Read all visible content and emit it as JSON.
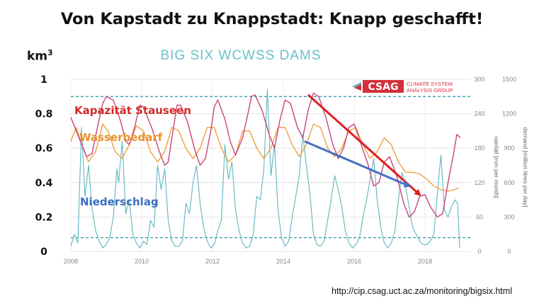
{
  "slide": {
    "title": "Von Kapstadt zu Knappstadt: Knapp geschafft!",
    "unit_base": "km",
    "unit_exp": "3",
    "source": "http://cip.csag.uct.ac.za/monitoring/bigsix.html"
  },
  "logo": {
    "name": "CSAG",
    "line1": "CLIMATE SYSTEM",
    "line2": "ANALYSIS GROUP",
    "color": "#d42f3a"
  },
  "chart_data": {
    "type": "line",
    "title": "BIG SIX WCWSS DAMS",
    "x_ticks": [
      "2008",
      "2010",
      "2012",
      "2014",
      "2016",
      "2018"
    ],
    "xlim": [
      2008,
      2019.3
    ],
    "y_left": {
      "label": "km³",
      "ticks": [
        "0",
        "0.2",
        "0.4",
        "0.6",
        "0.8",
        "1"
      ],
      "lim": [
        0,
        1
      ]
    },
    "y_rain": {
      "label": "rainfall [mm per month]",
      "ticks": [
        "0",
        "60",
        "120",
        "180",
        "240",
        "300"
      ],
      "lim": [
        0,
        300
      ]
    },
    "y_demand": {
      "label": "demand [million litres per day]",
      "ticks": [
        "0",
        "300",
        "600",
        "900",
        "1200",
        "1500"
      ],
      "lim": [
        0,
        1500
      ]
    },
    "reference_lines": [
      0.9,
      0.08
    ],
    "annotations": [
      {
        "text": "Kapazität Stauseen",
        "color": "#d42a2a"
      },
      {
        "text": "Wasserbedarf",
        "color": "#e8912e"
      },
      {
        "text": "Niederschlag",
        "color": "#3b6fc2"
      }
    ],
    "trend_arrows": [
      {
        "series": "storage",
        "from": [
          2014.7,
          0.91
        ],
        "to": [
          2017.85,
          0.33
        ],
        "color": "#dd1f1f"
      },
      {
        "series": "rainfall",
        "from": [
          2014.6,
          0.64
        ],
        "to": [
          2017.55,
          0.38
        ],
        "color": "#4670c8"
      }
    ],
    "series": [
      {
        "key": "storage",
        "color": "#c8457a",
        "points": [
          [
            2008.0,
            0.78
          ],
          [
            2008.25,
            0.65
          ],
          [
            2008.45,
            0.55
          ],
          [
            2008.6,
            0.57
          ],
          [
            2008.75,
            0.72
          ],
          [
            2008.9,
            0.86
          ],
          [
            2009.0,
            0.9
          ],
          [
            2009.2,
            0.88
          ],
          [
            2009.4,
            0.76
          ],
          [
            2009.55,
            0.64
          ],
          [
            2009.65,
            0.62
          ],
          [
            2009.8,
            0.72
          ],
          [
            2009.95,
            0.85
          ],
          [
            2010.05,
            0.84
          ],
          [
            2010.3,
            0.71
          ],
          [
            2010.5,
            0.58
          ],
          [
            2010.65,
            0.5
          ],
          [
            2010.75,
            0.52
          ],
          [
            2010.9,
            0.72
          ],
          [
            2011.0,
            0.85
          ],
          [
            2011.1,
            0.85
          ],
          [
            2011.3,
            0.75
          ],
          [
            2011.5,
            0.59
          ],
          [
            2011.65,
            0.5
          ],
          [
            2011.8,
            0.54
          ],
          [
            2011.95,
            0.7
          ],
          [
            2012.05,
            0.84
          ],
          [
            2012.15,
            0.88
          ],
          [
            2012.35,
            0.77
          ],
          [
            2012.5,
            0.64
          ],
          [
            2012.65,
            0.56
          ],
          [
            2012.85,
            0.66
          ],
          [
            2013.0,
            0.8
          ],
          [
            2013.1,
            0.9
          ],
          [
            2013.2,
            0.91
          ],
          [
            2013.4,
            0.82
          ],
          [
            2013.6,
            0.68
          ],
          [
            2013.75,
            0.6
          ],
          [
            2013.9,
            0.76
          ],
          [
            2014.05,
            0.88
          ],
          [
            2014.2,
            0.86
          ],
          [
            2014.4,
            0.72
          ],
          [
            2014.55,
            0.66
          ],
          [
            2014.7,
            0.82
          ],
          [
            2014.85,
            0.92
          ],
          [
            2015.0,
            0.9
          ],
          [
            2015.2,
            0.78
          ],
          [
            2015.4,
            0.62
          ],
          [
            2015.55,
            0.54
          ],
          [
            2015.7,
            0.6
          ],
          [
            2015.85,
            0.72
          ],
          [
            2016.0,
            0.74
          ],
          [
            2016.2,
            0.62
          ],
          [
            2016.4,
            0.5
          ],
          [
            2016.55,
            0.38
          ],
          [
            2016.7,
            0.4
          ],
          [
            2016.85,
            0.52
          ],
          [
            2017.0,
            0.55
          ],
          [
            2017.2,
            0.44
          ],
          [
            2017.4,
            0.28
          ],
          [
            2017.55,
            0.2
          ],
          [
            2017.7,
            0.23
          ],
          [
            2017.85,
            0.32
          ],
          [
            2018.0,
            0.33
          ],
          [
            2018.15,
            0.26
          ],
          [
            2018.35,
            0.2
          ],
          [
            2018.5,
            0.22
          ],
          [
            2018.65,
            0.4
          ],
          [
            2018.8,
            0.56
          ],
          [
            2018.9,
            0.68
          ],
          [
            2019.0,
            0.66
          ]
        ]
      },
      {
        "key": "demand",
        "color": "#f0a040",
        "points": [
          [
            2008.0,
            0.64
          ],
          [
            2008.15,
            0.72
          ],
          [
            2008.35,
            0.6
          ],
          [
            2008.5,
            0.52
          ],
          [
            2008.7,
            0.58
          ],
          [
            2008.9,
            0.74
          ],
          [
            2009.05,
            0.7
          ],
          [
            2009.25,
            0.58
          ],
          [
            2009.45,
            0.54
          ],
          [
            2009.65,
            0.62
          ],
          [
            2009.85,
            0.73
          ],
          [
            2010.05,
            0.7
          ],
          [
            2010.25,
            0.58
          ],
          [
            2010.45,
            0.52
          ],
          [
            2010.65,
            0.58
          ],
          [
            2010.85,
            0.72
          ],
          [
            2011.05,
            0.7
          ],
          [
            2011.25,
            0.6
          ],
          [
            2011.45,
            0.54
          ],
          [
            2011.65,
            0.6
          ],
          [
            2011.85,
            0.72
          ],
          [
            2012.05,
            0.72
          ],
          [
            2012.25,
            0.6
          ],
          [
            2012.45,
            0.52
          ],
          [
            2012.65,
            0.56
          ],
          [
            2012.85,
            0.7
          ],
          [
            2013.05,
            0.7
          ],
          [
            2013.25,
            0.6
          ],
          [
            2013.45,
            0.54
          ],
          [
            2013.65,
            0.6
          ],
          [
            2013.85,
            0.72
          ],
          [
            2014.05,
            0.72
          ],
          [
            2014.25,
            0.62
          ],
          [
            2014.45,
            0.55
          ],
          [
            2014.65,
            0.62
          ],
          [
            2014.85,
            0.74
          ],
          [
            2015.05,
            0.72
          ],
          [
            2015.25,
            0.6
          ],
          [
            2015.45,
            0.55
          ],
          [
            2015.65,
            0.6
          ],
          [
            2015.85,
            0.7
          ],
          [
            2016.05,
            0.72
          ],
          [
            2016.25,
            0.62
          ],
          [
            2016.45,
            0.54
          ],
          [
            2016.65,
            0.58
          ],
          [
            2016.85,
            0.66
          ],
          [
            2017.05,
            0.62
          ],
          [
            2017.25,
            0.52
          ],
          [
            2017.45,
            0.46
          ],
          [
            2017.65,
            0.46
          ],
          [
            2017.85,
            0.45
          ],
          [
            2018.05,
            0.42
          ],
          [
            2018.25,
            0.38
          ],
          [
            2018.45,
            0.36
          ],
          [
            2018.65,
            0.35
          ],
          [
            2018.85,
            0.36
          ],
          [
            2018.95,
            0.37
          ]
        ]
      },
      {
        "key": "rainfall",
        "color": "#5fb6c0",
        "points": [
          [
            2008.0,
            0.03
          ],
          [
            2008.1,
            0.1
          ],
          [
            2008.2,
            0.05
          ],
          [
            2008.3,
            0.72
          ],
          [
            2008.4,
            0.32
          ],
          [
            2008.5,
            0.5
          ],
          [
            2008.6,
            0.25
          ],
          [
            2008.7,
            0.12
          ],
          [
            2008.8,
            0.06
          ],
          [
            2008.9,
            0.02
          ],
          [
            2009.0,
            0.04
          ],
          [
            2009.1,
            0.08
          ],
          [
            2009.2,
            0.2
          ],
          [
            2009.3,
            0.48
          ],
          [
            2009.35,
            0.4
          ],
          [
            2009.45,
            0.64
          ],
          [
            2009.55,
            0.22
          ],
          [
            2009.65,
            0.3
          ],
          [
            2009.75,
            0.1
          ],
          [
            2009.85,
            0.05
          ],
          [
            2009.95,
            0.02
          ],
          [
            2010.05,
            0.06
          ],
          [
            2010.15,
            0.04
          ],
          [
            2010.25,
            0.18
          ],
          [
            2010.35,
            0.14
          ],
          [
            2010.45,
            0.5
          ],
          [
            2010.55,
            0.36
          ],
          [
            2010.65,
            0.48
          ],
          [
            2010.75,
            0.18
          ],
          [
            2010.85,
            0.06
          ],
          [
            2010.95,
            0.03
          ],
          [
            2011.05,
            0.03
          ],
          [
            2011.15,
            0.06
          ],
          [
            2011.25,
            0.28
          ],
          [
            2011.35,
            0.22
          ],
          [
            2011.45,
            0.4
          ],
          [
            2011.55,
            0.5
          ],
          [
            2011.65,
            0.28
          ],
          [
            2011.75,
            0.14
          ],
          [
            2011.85,
            0.06
          ],
          [
            2011.95,
            0.02
          ],
          [
            2012.05,
            0.04
          ],
          [
            2012.15,
            0.12
          ],
          [
            2012.25,
            0.18
          ],
          [
            2012.35,
            0.62
          ],
          [
            2012.45,
            0.42
          ],
          [
            2012.55,
            0.52
          ],
          [
            2012.65,
            0.24
          ],
          [
            2012.75,
            0.12
          ],
          [
            2012.85,
            0.05
          ],
          [
            2012.95,
            0.02
          ],
          [
            2013.05,
            0.03
          ],
          [
            2013.15,
            0.1
          ],
          [
            2013.25,
            0.32
          ],
          [
            2013.35,
            0.3
          ],
          [
            2013.45,
            0.48
          ],
          [
            2013.55,
            0.94
          ],
          [
            2013.65,
            0.44
          ],
          [
            2013.75,
            0.62
          ],
          [
            2013.85,
            0.24
          ],
          [
            2013.95,
            0.08
          ],
          [
            2014.05,
            0.03
          ],
          [
            2014.15,
            0.06
          ],
          [
            2014.25,
            0.2
          ],
          [
            2014.35,
            0.32
          ],
          [
            2014.45,
            0.44
          ],
          [
            2014.55,
            0.68
          ],
          [
            2014.65,
            0.5
          ],
          [
            2014.75,
            0.34
          ],
          [
            2014.85,
            0.1
          ],
          [
            2014.95,
            0.04
          ],
          [
            2015.05,
            0.03
          ],
          [
            2015.15,
            0.06
          ],
          [
            2015.25,
            0.18
          ],
          [
            2015.35,
            0.3
          ],
          [
            2015.45,
            0.44
          ],
          [
            2015.55,
            0.36
          ],
          [
            2015.65,
            0.26
          ],
          [
            2015.75,
            0.12
          ],
          [
            2015.85,
            0.05
          ],
          [
            2015.95,
            0.02
          ],
          [
            2016.05,
            0.04
          ],
          [
            2016.15,
            0.08
          ],
          [
            2016.25,
            0.2
          ],
          [
            2016.35,
            0.3
          ],
          [
            2016.45,
            0.42
          ],
          [
            2016.55,
            0.54
          ],
          [
            2016.65,
            0.3
          ],
          [
            2016.75,
            0.14
          ],
          [
            2016.85,
            0.05
          ],
          [
            2016.95,
            0.02
          ],
          [
            2017.05,
            0.05
          ],
          [
            2017.15,
            0.12
          ],
          [
            2017.25,
            0.3
          ],
          [
            2017.35,
            0.46
          ],
          [
            2017.45,
            0.38
          ],
          [
            2017.55,
            0.26
          ],
          [
            2017.65,
            0.14
          ],
          [
            2017.75,
            0.1
          ],
          [
            2017.85,
            0.06
          ],
          [
            2017.95,
            0.04
          ],
          [
            2018.05,
            0.04
          ],
          [
            2018.15,
            0.06
          ],
          [
            2018.25,
            0.1
          ],
          [
            2018.35,
            0.34
          ],
          [
            2018.45,
            0.56
          ],
          [
            2018.55,
            0.24
          ],
          [
            2018.65,
            0.2
          ],
          [
            2018.75,
            0.26
          ],
          [
            2018.85,
            0.3
          ],
          [
            2018.92,
            0.28
          ],
          [
            2018.98,
            0.02
          ]
        ]
      }
    ]
  }
}
